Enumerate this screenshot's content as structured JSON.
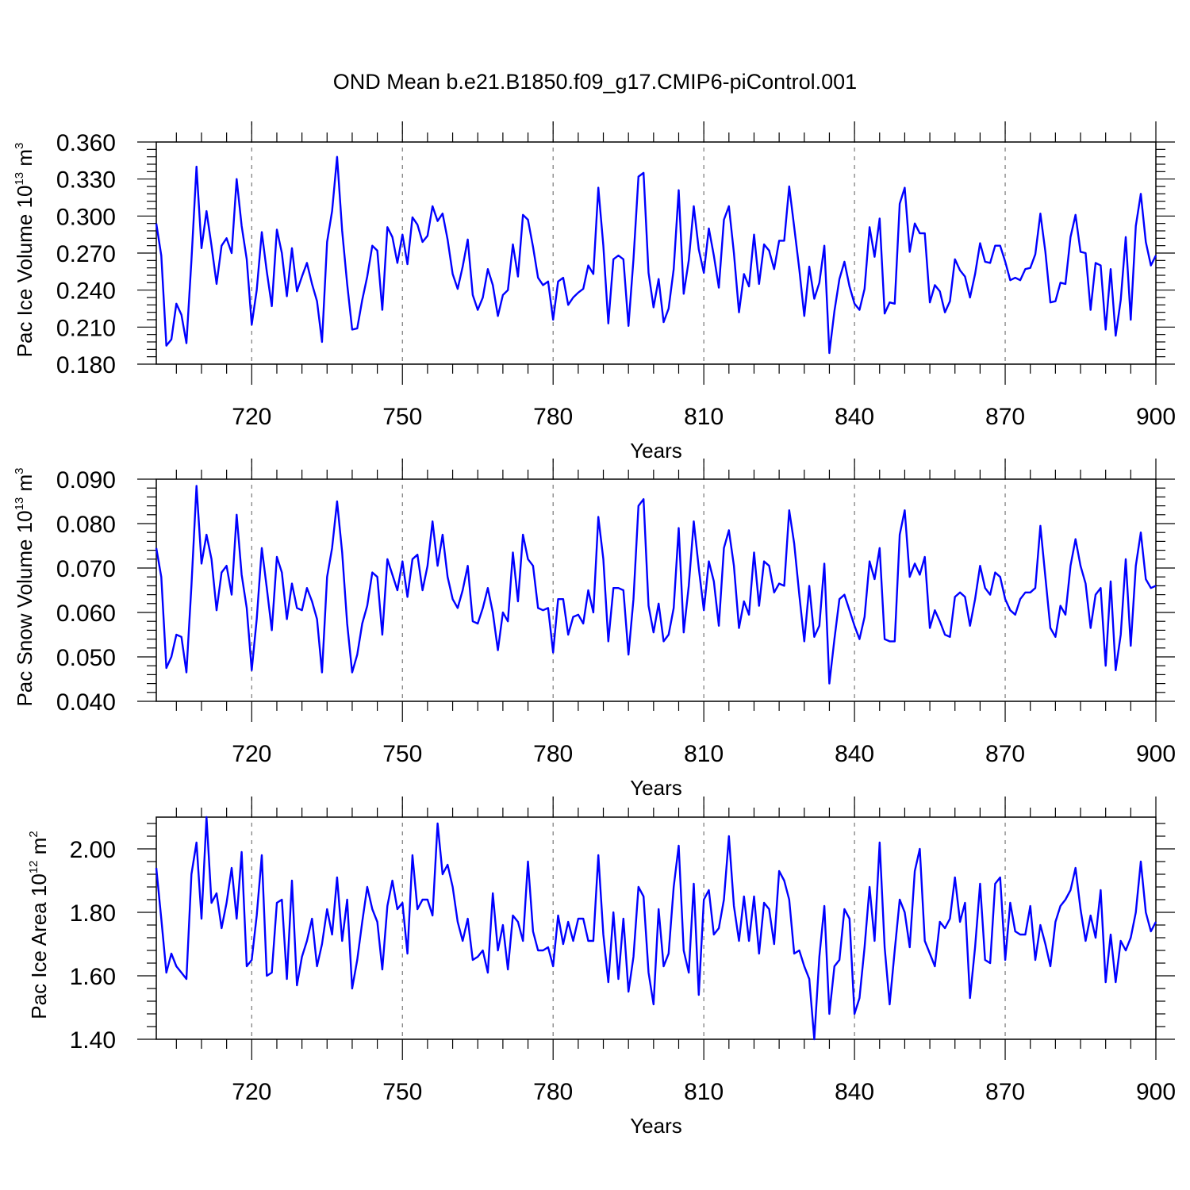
{
  "chart_data": [
    {
      "type": "line",
      "title": "OND Mean b.e21.B1850.f09_g17.CMIP6-piControl.001",
      "xlabel": "Years",
      "ylabel": "Pac Ice Volume 10",
      "ylabel_exp": "13",
      "ylabel_unit": " m",
      "ylabel_unit_exp": "3",
      "xlim": [
        701,
        900
      ],
      "ylim": [
        0.18,
        0.36
      ],
      "xticks": [
        "720",
        "750",
        "780",
        "810",
        "840",
        "870",
        "900"
      ],
      "yticks": [
        "0.360",
        "0.330",
        "0.300",
        "0.270",
        "0.240",
        "0.210",
        "0.180"
      ],
      "grid": "vertical dashed at x ticks",
      "series": [
        {
          "name": "Pac Ice Volume",
          "color": "#0000ff",
          "x_start": 701,
          "values": [
            0.294,
            0.268,
            0.195,
            0.2,
            0.229,
            0.22,
            0.197,
            0.264,
            0.34,
            0.274,
            0.304,
            0.276,
            0.245,
            0.276,
            0.282,
            0.27,
            0.33,
            0.292,
            0.265,
            0.212,
            0.24,
            0.287,
            0.255,
            0.227,
            0.289,
            0.27,
            0.235,
            0.274,
            0.239,
            0.251,
            0.262,
            0.245,
            0.231,
            0.198,
            0.279,
            0.304,
            0.348,
            0.288,
            0.245,
            0.208,
            0.209,
            0.232,
            0.251,
            0.276,
            0.272,
            0.224,
            0.291,
            0.283,
            0.262,
            0.285,
            0.261,
            0.299,
            0.293,
            0.279,
            0.284,
            0.308,
            0.296,
            0.302,
            0.281,
            0.253,
            0.241,
            0.259,
            0.281,
            0.236,
            0.224,
            0.234,
            0.257,
            0.244,
            0.219,
            0.236,
            0.24,
            0.277,
            0.251,
            0.301,
            0.297,
            0.275,
            0.25,
            0.244,
            0.247,
            0.216,
            0.247,
            0.25,
            0.228,
            0.234,
            0.238,
            0.241,
            0.26,
            0.253,
            0.323,
            0.276,
            0.213,
            0.265,
            0.268,
            0.265,
            0.211,
            0.265,
            0.332,
            0.335,
            0.254,
            0.226,
            0.249,
            0.214,
            0.225,
            0.257,
            0.321,
            0.237,
            0.264,
            0.308,
            0.273,
            0.254,
            0.29,
            0.268,
            0.242,
            0.297,
            0.308,
            0.27,
            0.222,
            0.253,
            0.243,
            0.285,
            0.245,
            0.277,
            0.272,
            0.257,
            0.28,
            0.28,
            0.324,
            0.291,
            0.257,
            0.219,
            0.259,
            0.233,
            0.246,
            0.276,
            0.189,
            0.223,
            0.249,
            0.263,
            0.243,
            0.229,
            0.224,
            0.241,
            0.291,
            0.267,
            0.298,
            0.221,
            0.23,
            0.229,
            0.31,
            0.323,
            0.271,
            0.294,
            0.286,
            0.286,
            0.23,
            0.244,
            0.239,
            0.222,
            0.231,
            0.265,
            0.256,
            0.251,
            0.234,
            0.253,
            0.278,
            0.263,
            0.262,
            0.276,
            0.276,
            0.263,
            0.248,
            0.25,
            0.248,
            0.257,
            0.258,
            0.269,
            0.302,
            0.271,
            0.23,
            0.231,
            0.246,
            0.245,
            0.283,
            0.301,
            0.271,
            0.27,
            0.224,
            0.262,
            0.26,
            0.208,
            0.257,
            0.203,
            0.232,
            0.283,
            0.216,
            0.292,
            0.318,
            0.279,
            0.26,
            0.268
          ]
        }
      ]
    },
    {
      "type": "line",
      "xlabel": "Years",
      "ylabel": "Pac Snow Volume 10",
      "ylabel_exp": "13",
      "ylabel_unit": " m",
      "ylabel_unit_exp": "3",
      "xlim": [
        701,
        900
      ],
      "ylim": [
        0.04,
        0.09
      ],
      "xticks": [
        "720",
        "750",
        "780",
        "810",
        "840",
        "870",
        "900"
      ],
      "yticks": [
        "0.090",
        "0.080",
        "0.070",
        "0.060",
        "0.050",
        "0.040"
      ],
      "grid": "vertical dashed at x ticks",
      "series": [
        {
          "name": "Pac Snow Volume",
          "color": "#0000ff",
          "x_start": 701,
          "values": [
            0.0745,
            0.068,
            0.0475,
            0.05,
            0.055,
            0.0545,
            0.0465,
            0.066,
            0.0885,
            0.071,
            0.0775,
            0.072,
            0.0605,
            0.069,
            0.0705,
            0.064,
            0.082,
            0.0685,
            0.061,
            0.047,
            0.0585,
            0.0745,
            0.0655,
            0.056,
            0.0725,
            0.069,
            0.0585,
            0.0665,
            0.061,
            0.0605,
            0.0655,
            0.0625,
            0.0585,
            0.0465,
            0.068,
            0.0745,
            0.085,
            0.0735,
            0.0575,
            0.0465,
            0.0505,
            0.0575,
            0.0615,
            0.069,
            0.068,
            0.055,
            0.072,
            0.0685,
            0.065,
            0.0715,
            0.0635,
            0.072,
            0.073,
            0.065,
            0.0705,
            0.0805,
            0.0705,
            0.0775,
            0.068,
            0.063,
            0.061,
            0.065,
            0.0705,
            0.058,
            0.0575,
            0.061,
            0.0655,
            0.06,
            0.0515,
            0.06,
            0.058,
            0.0735,
            0.0625,
            0.0775,
            0.072,
            0.0705,
            0.061,
            0.0605,
            0.061,
            0.051,
            0.063,
            0.063,
            0.055,
            0.059,
            0.0595,
            0.0575,
            0.065,
            0.06,
            0.0815,
            0.072,
            0.0535,
            0.0655,
            0.0655,
            0.065,
            0.0505,
            0.063,
            0.084,
            0.0855,
            0.0615,
            0.0555,
            0.062,
            0.0535,
            0.055,
            0.061,
            0.079,
            0.0555,
            0.066,
            0.0805,
            0.07,
            0.0605,
            0.0715,
            0.067,
            0.057,
            0.0745,
            0.0785,
            0.0705,
            0.0565,
            0.0625,
            0.0595,
            0.0735,
            0.0615,
            0.0715,
            0.0705,
            0.0645,
            0.0665,
            0.066,
            0.083,
            0.0755,
            0.064,
            0.0535,
            0.066,
            0.0545,
            0.057,
            0.071,
            0.044,
            0.054,
            0.063,
            0.064,
            0.0605,
            0.057,
            0.054,
            0.059,
            0.0715,
            0.0675,
            0.0745,
            0.054,
            0.0535,
            0.0535,
            0.0775,
            0.083,
            0.068,
            0.071,
            0.0685,
            0.0725,
            0.0565,
            0.0605,
            0.058,
            0.055,
            0.0545,
            0.0635,
            0.0645,
            0.0635,
            0.057,
            0.063,
            0.0705,
            0.0655,
            0.064,
            0.069,
            0.068,
            0.063,
            0.0605,
            0.0595,
            0.063,
            0.0645,
            0.0645,
            0.0655,
            0.0795,
            0.068,
            0.0565,
            0.0545,
            0.0615,
            0.0595,
            0.0705,
            0.0765,
            0.0705,
            0.0665,
            0.0565,
            0.064,
            0.0655,
            0.048,
            0.067,
            0.047,
            0.055,
            0.072,
            0.0525,
            0.0705,
            0.078,
            0.0675,
            0.0655,
            0.066
          ]
        }
      ]
    },
    {
      "type": "line",
      "xlabel": "Years",
      "ylabel": "Pac Ice Area 10",
      "ylabel_exp": "12",
      "ylabel_unit": " m",
      "ylabel_unit_exp": "2",
      "xlim": [
        701,
        900
      ],
      "ylim": [
        1.4,
        2.1
      ],
      "xticks": [
        "720",
        "750",
        "780",
        "810",
        "840",
        "870",
        "900"
      ],
      "yticks": [
        "2.00",
        "1.80",
        "1.60",
        "1.40"
      ],
      "grid": "vertical dashed at x ticks",
      "series": [
        {
          "name": "Pac Ice Area",
          "color": "#0000ff",
          "x_start": 701,
          "values": [
            1.94,
            1.78,
            1.61,
            1.67,
            1.63,
            1.61,
            1.59,
            1.92,
            2.02,
            1.78,
            2.1,
            1.83,
            1.86,
            1.75,
            1.83,
            1.94,
            1.78,
            1.99,
            1.63,
            1.65,
            1.79,
            1.98,
            1.6,
            1.61,
            1.83,
            1.84,
            1.59,
            1.9,
            1.57,
            1.66,
            1.71,
            1.78,
            1.63,
            1.7,
            1.81,
            1.73,
            1.91,
            1.71,
            1.84,
            1.56,
            1.65,
            1.77,
            1.88,
            1.81,
            1.77,
            1.62,
            1.82,
            1.9,
            1.81,
            1.83,
            1.67,
            1.98,
            1.81,
            1.84,
            1.84,
            1.79,
            2.08,
            1.92,
            1.95,
            1.88,
            1.77,
            1.71,
            1.78,
            1.65,
            1.66,
            1.68,
            1.61,
            1.86,
            1.68,
            1.76,
            1.62,
            1.79,
            1.77,
            1.71,
            1.96,
            1.74,
            1.68,
            1.68,
            1.69,
            1.63,
            1.79,
            1.7,
            1.77,
            1.71,
            1.78,
            1.78,
            1.71,
            1.71,
            1.98,
            1.73,
            1.58,
            1.8,
            1.59,
            1.78,
            1.55,
            1.66,
            1.88,
            1.85,
            1.61,
            1.51,
            1.81,
            1.63,
            1.67,
            1.88,
            2.01,
            1.68,
            1.61,
            1.89,
            1.54,
            1.84,
            1.87,
            1.73,
            1.75,
            1.84,
            2.04,
            1.82,
            1.71,
            1.85,
            1.71,
            1.85,
            1.67,
            1.83,
            1.81,
            1.7,
            1.93,
            1.9,
            1.84,
            1.67,
            1.68,
            1.63,
            1.59,
            1.4,
            1.66,
            1.82,
            1.48,
            1.63,
            1.65,
            1.81,
            1.78,
            1.48,
            1.53,
            1.69,
            1.88,
            1.71,
            2.02,
            1.69,
            1.51,
            1.68,
            1.84,
            1.8,
            1.69,
            1.93,
            2.0,
            1.71,
            1.67,
            1.63,
            1.77,
            1.75,
            1.78,
            1.91,
            1.77,
            1.83,
            1.53,
            1.69,
            1.89,
            1.65,
            1.64,
            1.89,
            1.91,
            1.65,
            1.83,
            1.74,
            1.73,
            1.73,
            1.82,
            1.65,
            1.76,
            1.7,
            1.63,
            1.77,
            1.82,
            1.84,
            1.87,
            1.94,
            1.81,
            1.71,
            1.79,
            1.72,
            1.87,
            1.58,
            1.73,
            1.58,
            1.71,
            1.68,
            1.72,
            1.8,
            1.96,
            1.8,
            1.74,
            1.77
          ]
        }
      ]
    }
  ]
}
